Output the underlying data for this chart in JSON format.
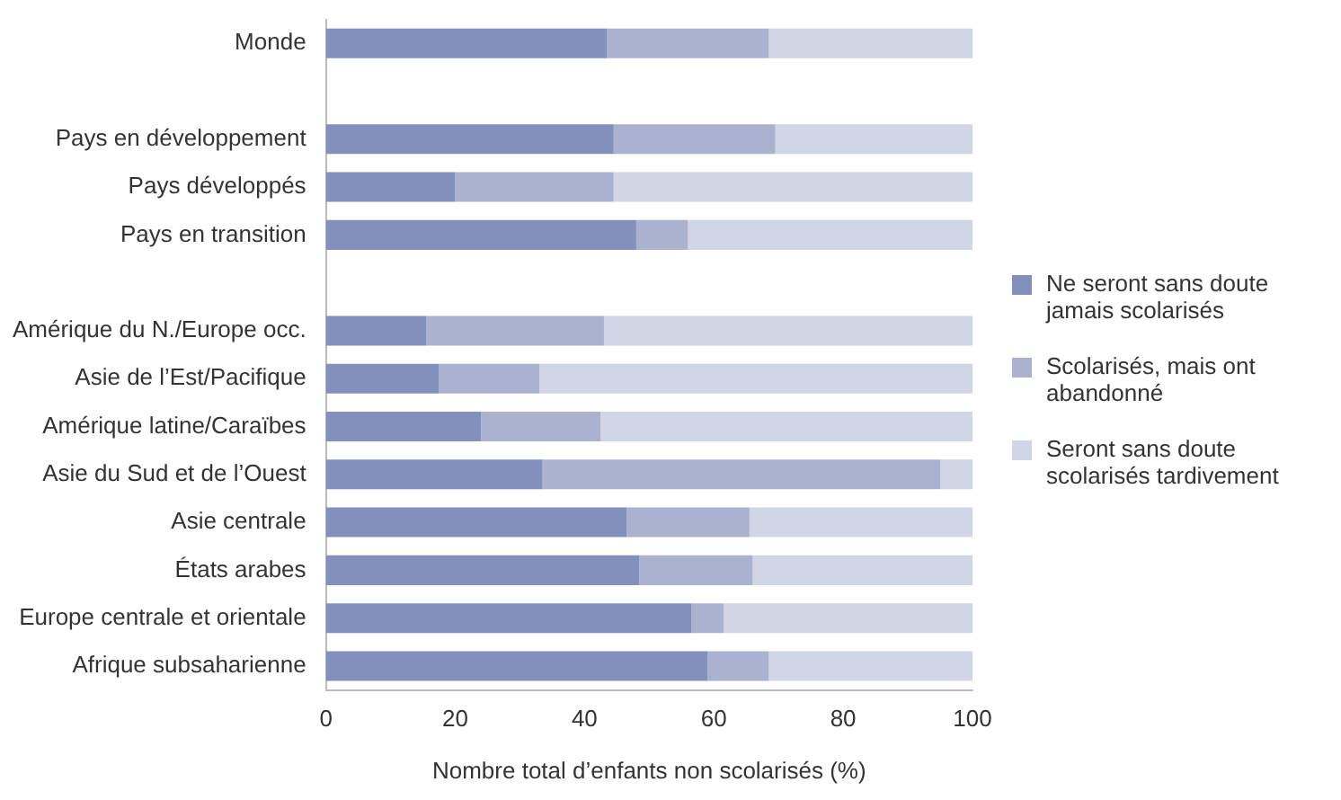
{
  "chart_data": {
    "type": "bar",
    "orientation": "horizontal",
    "stacked": true,
    "xlabel": "Nombre total d’enfants non scolarisés (%)",
    "categories": [
      "Monde",
      null,
      "Pays en développement",
      "Pays développés",
      "Pays en transition",
      null,
      "Amérique du N./Europe occ.",
      "Asie de l’Est/Pacifique",
      "Amérique latine/Caraïbes",
      "Asie du Sud et de l’Ouest",
      "Asie centrale",
      "États arabes",
      "Europe centrale et orientale",
      "Afrique subsaharienne"
    ],
    "series": [
      {
        "name": "Ne seront sans doute jamais scolarisés",
        "color": "#8290bb",
        "values": [
          43.5,
          null,
          44.5,
          20,
          48,
          null,
          15.5,
          17.5,
          24,
          33.5,
          46.5,
          48.5,
          56.5,
          59
        ]
      },
      {
        "name": "Scolarisés, mais ont abandonné",
        "color": "#aab2d0",
        "values": [
          25,
          null,
          25,
          24.5,
          8,
          null,
          27.5,
          15.5,
          18.5,
          61.5,
          19,
          17.5,
          5,
          9.5
        ]
      },
      {
        "name": "Seront sans doute scolarisés tardivement",
        "color": "#d2d5e6",
        "values": [
          31.5,
          null,
          30.5,
          55.5,
          44,
          null,
          57,
          67,
          57.5,
          5,
          34.5,
          34,
          38.5,
          31.5
        ]
      }
    ],
    "xlim": [
      0,
      100
    ],
    "xticks": [
      0,
      20,
      40,
      60,
      80,
      100
    ],
    "grid": false,
    "legend": "right"
  }
}
